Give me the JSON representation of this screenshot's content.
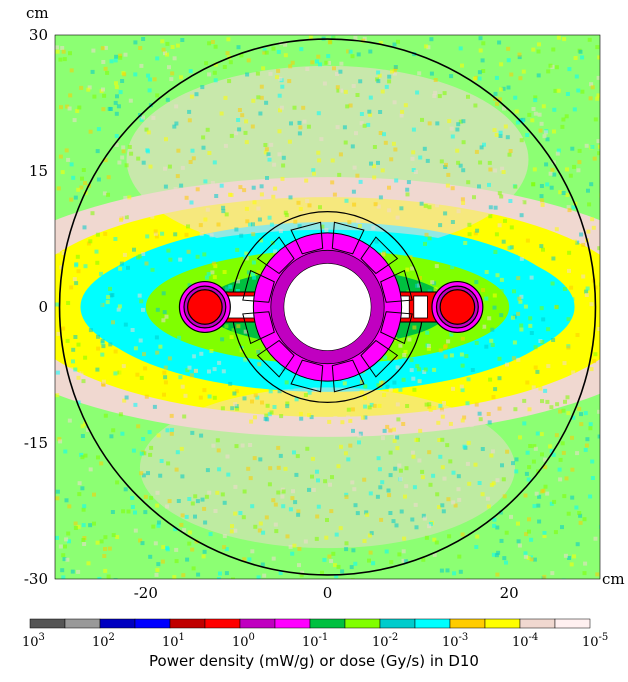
{
  "chart_data": {
    "type": "heatmap",
    "title": "",
    "x_unit": "cm",
    "y_unit": "cm",
    "xlim": [
      -30,
      30
    ],
    "ylim": [
      -30,
      30
    ],
    "x_ticks": [
      -20,
      0,
      20
    ],
    "y_ticks": [
      30,
      15,
      0,
      -15,
      -30
    ],
    "x_tick_labels": [
      "-20",
      "0",
      "20"
    ],
    "y_tick_labels": [
      "30",
      "15",
      "0",
      "-15",
      "-30"
    ],
    "colorbar": {
      "title": "Power density (mW/g) or dose (Gy/s) in D10",
      "scale": "log",
      "range": [
        1000,
        1e-05
      ],
      "tick_exponents": [
        "3",
        "2",
        "1",
        "0",
        "-1",
        "-2",
        "-3",
        "-4",
        "-5"
      ],
      "tick_base": "10",
      "bins": [
        {
          "upper": 1000,
          "color": "#555555"
        },
        {
          "upper": 316,
          "color": "#999999"
        },
        {
          "upper": 100,
          "color": "#0000c0"
        },
        {
          "upper": 31.6,
          "color": "#0000ff"
        },
        {
          "upper": 10,
          "color": "#c00000"
        },
        {
          "upper": 3.16,
          "color": "#ff0000"
        },
        {
          "upper": 1,
          "color": "#c000c0"
        },
        {
          "upper": 0.316,
          "color": "#ff00ff"
        },
        {
          "upper": 0.1,
          "color": "#00c040"
        },
        {
          "upper": 0.0316,
          "color": "#80ff00"
        },
        {
          "upper": 0.01,
          "color": "#00cccc"
        },
        {
          "upper": 0.00316,
          "color": "#00ffff"
        },
        {
          "upper": 0.001,
          "color": "#ffcc00"
        },
        {
          "upper": 0.000316,
          "color": "#ffff00"
        },
        {
          "upper": 0.0001,
          "color": "#f0d8d0"
        },
        {
          "upper": 3.16e-05,
          "color": "#fff0f0"
        }
      ]
    },
    "geometry": {
      "outer_circle_radius_cm": 29.5,
      "inner_circle_radius_cm": 10.5,
      "core_radius_cm": 4.8,
      "side_tube_centers_cm": [
        [
          -13.5,
          0
        ],
        [
          14.3,
          0
        ]
      ],
      "side_tube_radii_cm": [
        2.8,
        2.3,
        1.9
      ]
    },
    "field_bands": [
      {
        "r_cm": 5.5,
        "color": "#ff00ff"
      },
      {
        "r_cm": 8.5,
        "color": "#00c040"
      },
      {
        "r_cm": 12.5,
        "color": "#80ff00"
      },
      {
        "r_cm": 17,
        "color": "#00ffff"
      },
      {
        "r_cm": 22,
        "color": "#ffff00"
      },
      {
        "r_cm": 26,
        "color": "#f0d8d0"
      }
    ]
  }
}
